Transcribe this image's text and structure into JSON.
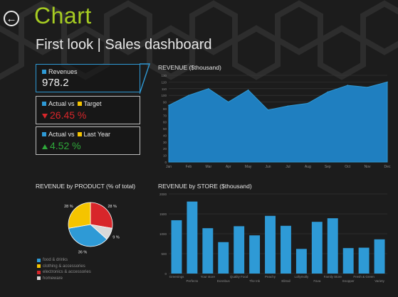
{
  "app": {
    "title": "Chart",
    "subtitle": "First look | Sales dashboard",
    "back_icon": "back-arrow-icon"
  },
  "colors": {
    "accent": "#a6cc22",
    "blue": "#2e9ad6",
    "yellow": "#f5c400",
    "red": "#d8262a",
    "green": "#2ea83a",
    "gray": "#cfcfcf"
  },
  "kpis": {
    "revenues": {
      "label": "Revenues",
      "value": "978.2"
    },
    "actual_target": {
      "label_a": "Actual vs",
      "label_b": "Target",
      "value": "26.45 %"
    },
    "actual_last_year": {
      "label_a": "Actual vs",
      "label_b": "Last Year",
      "value": "4.52 %"
    }
  },
  "chart_data": [
    {
      "type": "area",
      "title": "REVENUE ($thousand)",
      "categories": [
        "Jan",
        "Feb",
        "Mar",
        "Apr",
        "May",
        "Jun",
        "Jul",
        "Aug",
        "Sep",
        "Oct",
        "Nov",
        "Dec"
      ],
      "values": [
        85,
        100,
        110,
        90,
        108,
        78,
        84,
        88,
        105,
        115,
        112,
        120
      ],
      "ylim": [
        0,
        130
      ],
      "yticks": [
        0,
        10,
        20,
        30,
        40,
        50,
        60,
        70,
        80,
        90,
        100,
        110,
        120,
        130
      ],
      "ytick_labels": [
        "0",
        "10",
        "20",
        "30",
        "40",
        "50",
        "60",
        "70",
        "80",
        "90",
        "100",
        "110",
        "120",
        "130"
      ],
      "grid": true
    },
    {
      "type": "pie",
      "title": "REVENUE by PRODUCT (% of total)",
      "categories": [
        "food & drinks",
        "clothing & accessories",
        "electronics & accessories",
        "homeware"
      ],
      "values": [
        36,
        28,
        28,
        9
      ],
      "labels": [
        "36 %",
        "28 %",
        "28 %",
        "9 %"
      ],
      "colors": [
        "#2e9ad6",
        "#f5c400",
        "#d8262a",
        "#d9d9d9"
      ]
    },
    {
      "type": "bar",
      "title": "REVENUE by STORE ($thousand)",
      "categories": [
        "Greenings",
        "Perfecto",
        "Your store",
        "Donnbus",
        "Quality Food",
        "The Ink",
        "Peachy",
        "Elitrail",
        "Lollymolly",
        "Fava",
        "Family Store",
        "Snopper",
        "Fresh & Green",
        "Variety"
      ],
      "xtick_labels_row1": [
        "Greenings",
        "Your store",
        "Quality Food",
        "Peachy",
        "Lollymolly",
        "Family Store",
        "Fresh & Green"
      ],
      "xtick_labels_row2": [
        "Perfecto",
        "Donnbus",
        "The Ink",
        "Elitrail",
        "Fava",
        "Snopper",
        "Variety"
      ],
      "values": [
        1340,
        1810,
        1140,
        790,
        1190,
        960,
        1450,
        1200,
        620,
        1300,
        1390,
        640,
        650,
        860
      ],
      "ylim": [
        0,
        2000
      ],
      "yticks": [
        0,
        500,
        1000,
        1500,
        2000
      ],
      "ytick_labels": [
        "0",
        "500",
        "1000",
        "1500",
        "2000"
      ],
      "grid": true
    }
  ]
}
